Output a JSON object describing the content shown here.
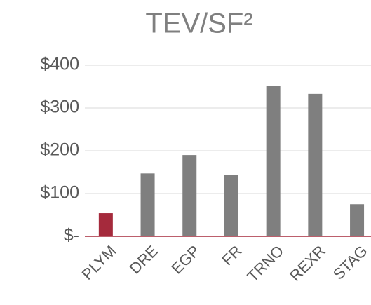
{
  "chart_data": {
    "type": "bar",
    "title": "TEV/SF²",
    "categories": [
      "PLYM",
      "DRE",
      "EGP",
      "FR",
      "TRNO",
      "REXR",
      "STAG"
    ],
    "values": [
      54,
      147,
      190,
      143,
      352,
      333,
      75
    ],
    "colors": [
      "#a52a3c",
      "#7f7f7f",
      "#7f7f7f",
      "#7f7f7f",
      "#7f7f7f",
      "#7f7f7f",
      "#7f7f7f"
    ],
    "ylim": [
      0,
      400
    ],
    "yticks": [
      {
        "value": 0,
        "label": "$-"
      },
      {
        "value": 100,
        "label": "$100"
      },
      {
        "value": 200,
        "label": "$200"
      },
      {
        "value": 300,
        "label": "$300"
      },
      {
        "value": 400,
        "label": "$400"
      }
    ],
    "grid": true
  }
}
